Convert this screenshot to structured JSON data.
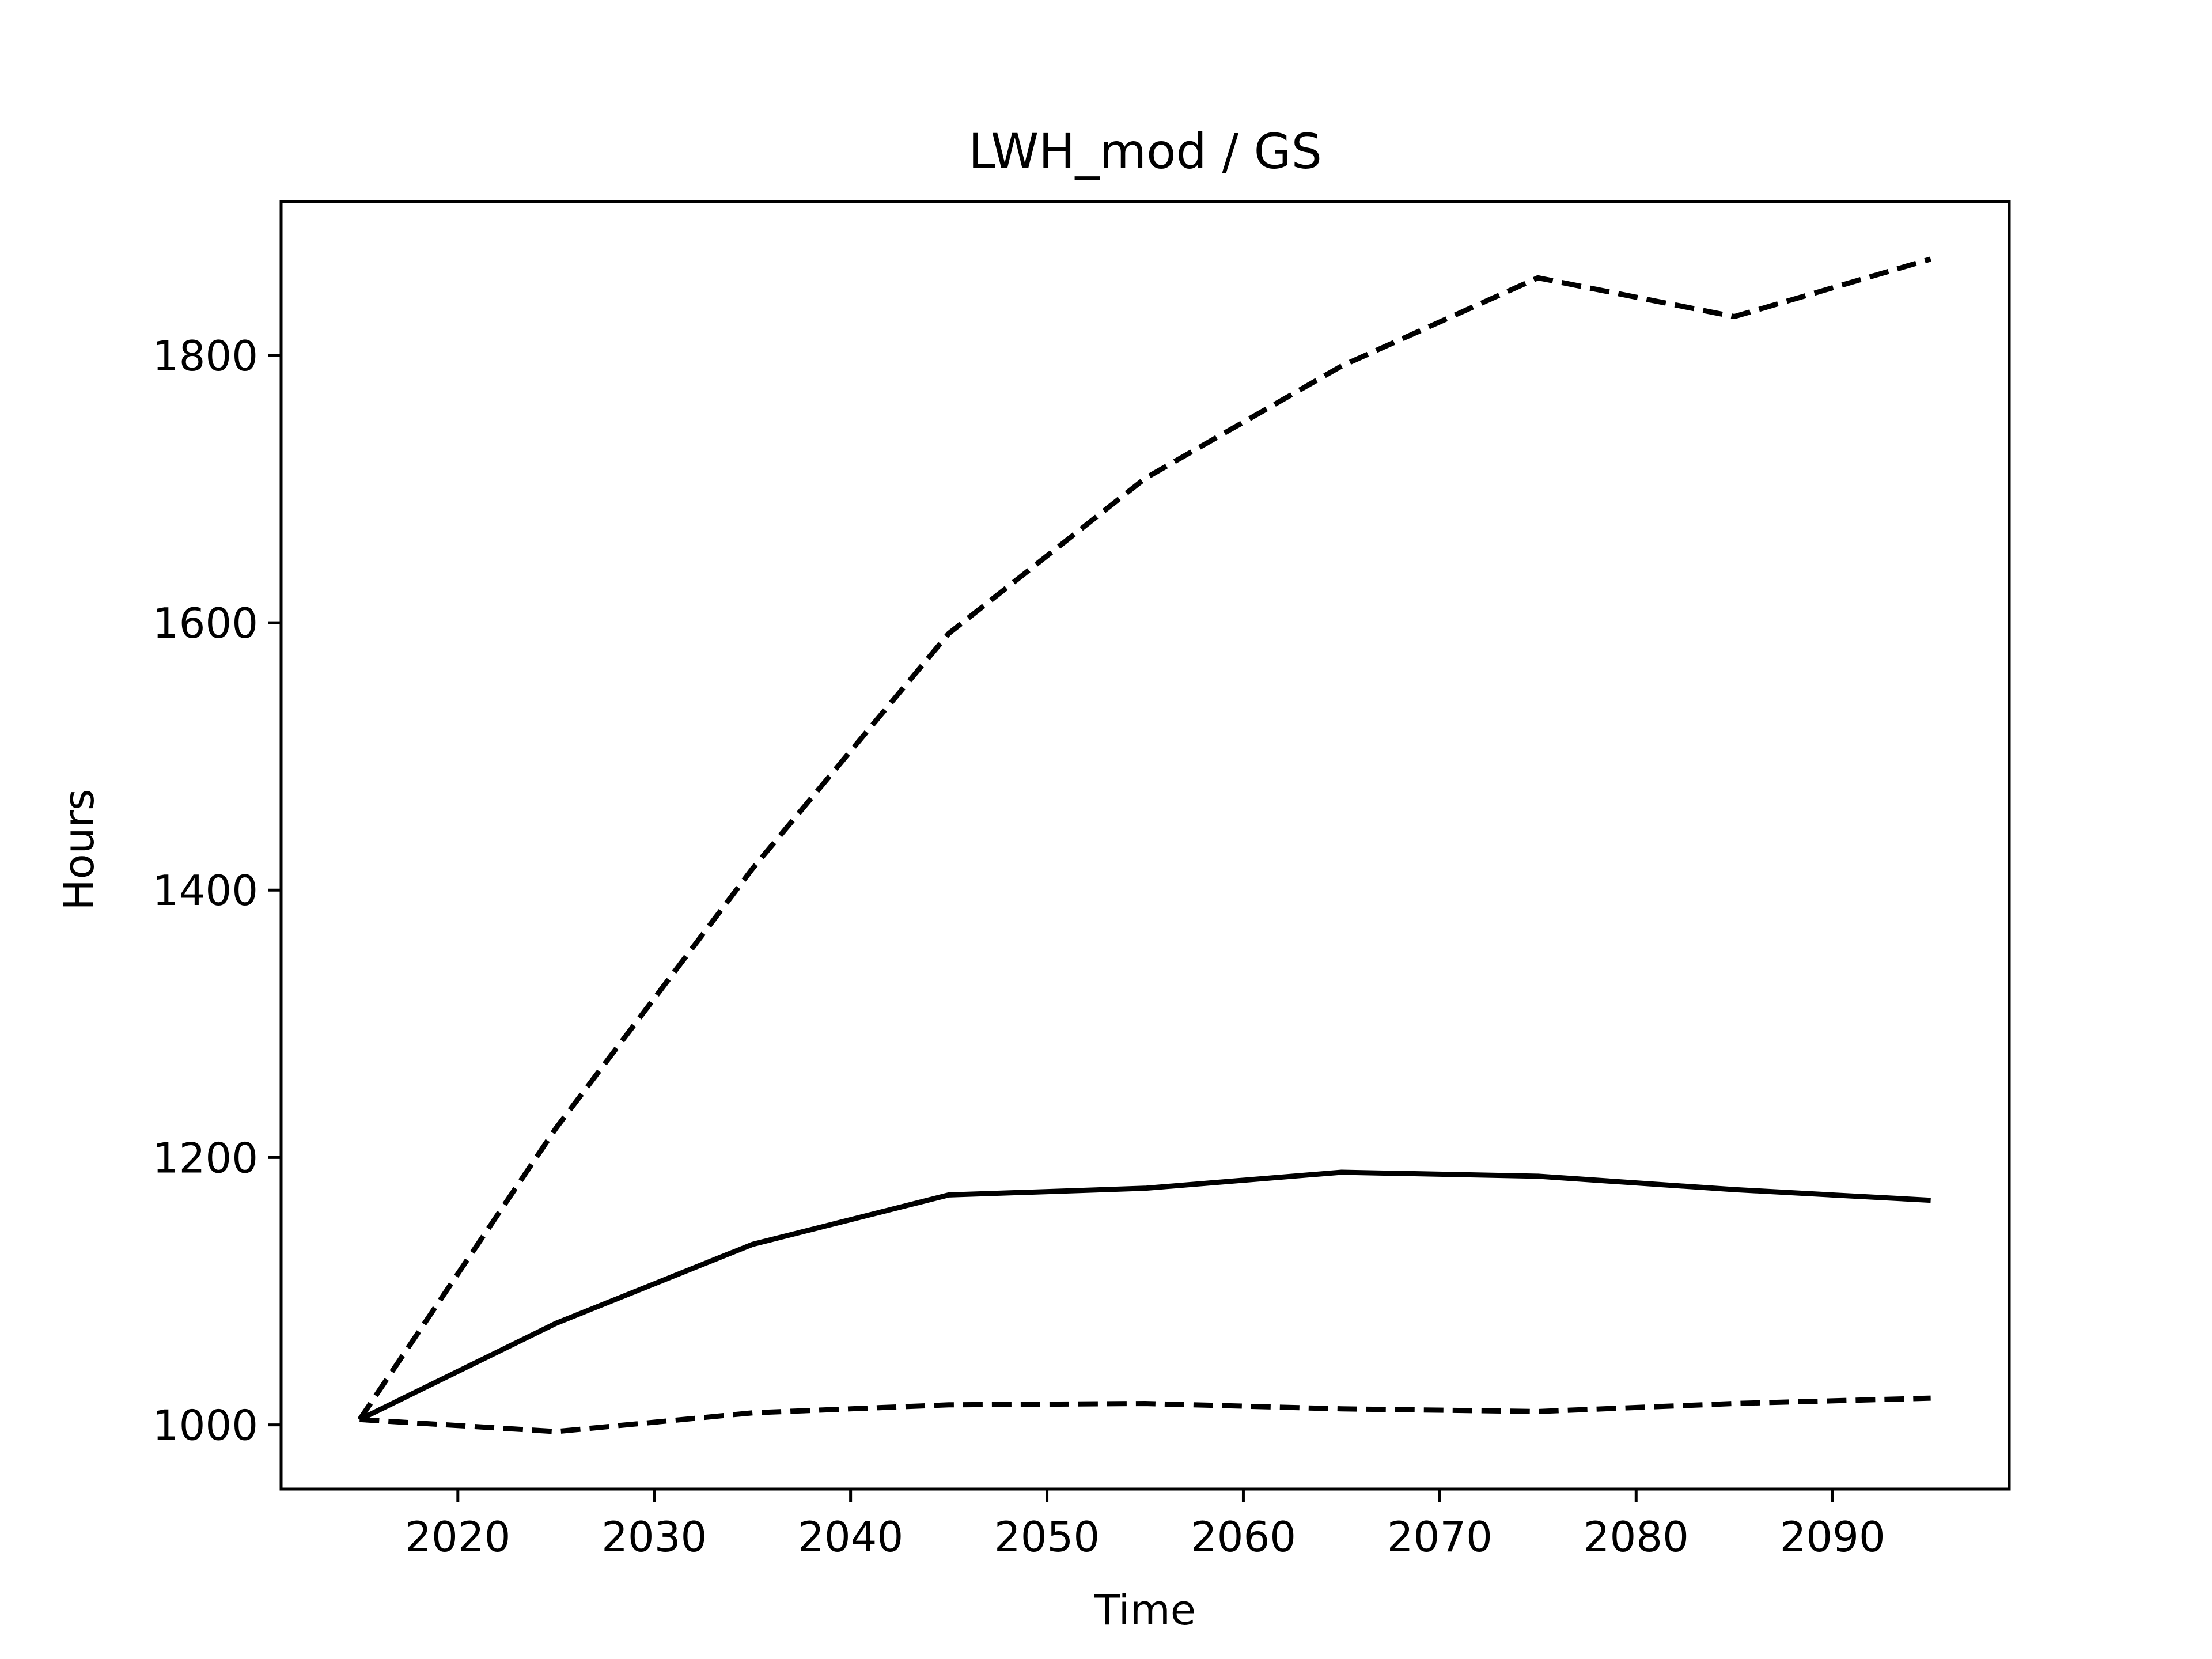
{
  "chart_data": {
    "type": "line",
    "title": "LWH_mod / GS",
    "xlabel": "Time",
    "ylabel": "Hours",
    "xlim": [
      2011,
      2099
    ],
    "ylim": [
      952,
      1915
    ],
    "x_ticks": [
      2020,
      2030,
      2040,
      2050,
      2060,
      2070,
      2080,
      2090
    ],
    "y_ticks": [
      1000,
      1200,
      1400,
      1600,
      1800
    ],
    "grid": false,
    "legend": "none",
    "x": [
      2015,
      2025,
      2035,
      2045,
      2055,
      2065,
      2075,
      2085,
      2095
    ],
    "series": [
      {
        "style": "solid",
        "color": "#000000",
        "values": [
          1004,
          1076,
          1135,
          1172,
          1177,
          1189,
          1186,
          1176,
          1168
        ]
      },
      {
        "style": "dashed",
        "color": "#000000",
        "values": [
          1004,
          1222,
          1416,
          1592,
          1708,
          1792,
          1858,
          1829,
          1872
        ]
      },
      {
        "style": "dashed",
        "color": "#000000",
        "values": [
          1004,
          995,
          1009,
          1015,
          1016,
          1012,
          1010,
          1016,
          1020
        ]
      }
    ]
  }
}
